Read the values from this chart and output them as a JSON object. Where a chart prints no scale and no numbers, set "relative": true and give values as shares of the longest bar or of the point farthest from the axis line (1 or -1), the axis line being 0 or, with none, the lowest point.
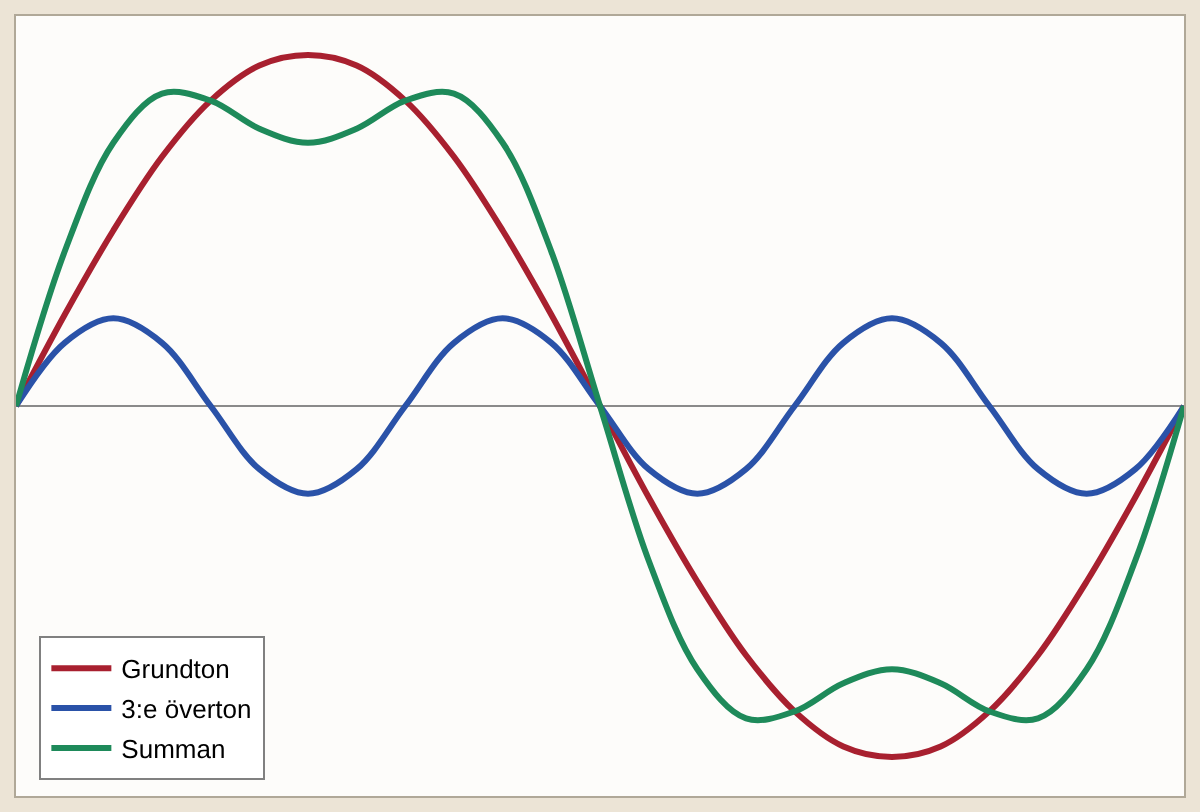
{
  "chart_data": {
    "type": "line",
    "relative": true,
    "legend": "bottom left",
    "marker": "none",
    "line_style": "solid",
    "categories": [
      null,
      null,
      null,
      null,
      null,
      null,
      null,
      null,
      null,
      null,
      null,
      null,
      null,
      null,
      null,
      null,
      null,
      null,
      null,
      null,
      null,
      null,
      null,
      null,
      null
    ],
    "series": [
      {
        "name": "Grundton",
        "color": "#a8202f",
        "values": [
          0,
          0.26,
          0.5,
          0.71,
          0.87,
          0.97,
          1,
          0.97,
          0.87,
          0.71,
          0.5,
          0.26,
          0,
          -0.26,
          -0.5,
          -0.71,
          -0.87,
          -0.97,
          -1,
          -0.97,
          -0.87,
          -0.71,
          -0.5,
          -0.26,
          0
        ]
      },
      {
        "name": "3:e överton",
        "color": "#2a52a8",
        "values": [
          0,
          0.18,
          0.25,
          0.18,
          0,
          -0.18,
          -0.25,
          -0.18,
          0,
          0.18,
          0.25,
          0.18,
          0,
          -0.18,
          -0.25,
          -0.18,
          0,
          0.18,
          0.25,
          0.18,
          0,
          -0.18,
          -0.25,
          -0.18,
          0
        ]
      },
      {
        "name": "Summan",
        "color": "#1e8a5a",
        "values": [
          0,
          0.44,
          0.75,
          0.89,
          0.87,
          0.79,
          0.75,
          0.79,
          0.87,
          0.89,
          0.75,
          0.44,
          0,
          -0.44,
          -0.75,
          -0.89,
          -0.87,
          -0.79,
          -0.75,
          -0.79,
          -0.87,
          -0.89,
          -0.75,
          -0.44,
          0
        ]
      }
    ]
  }
}
